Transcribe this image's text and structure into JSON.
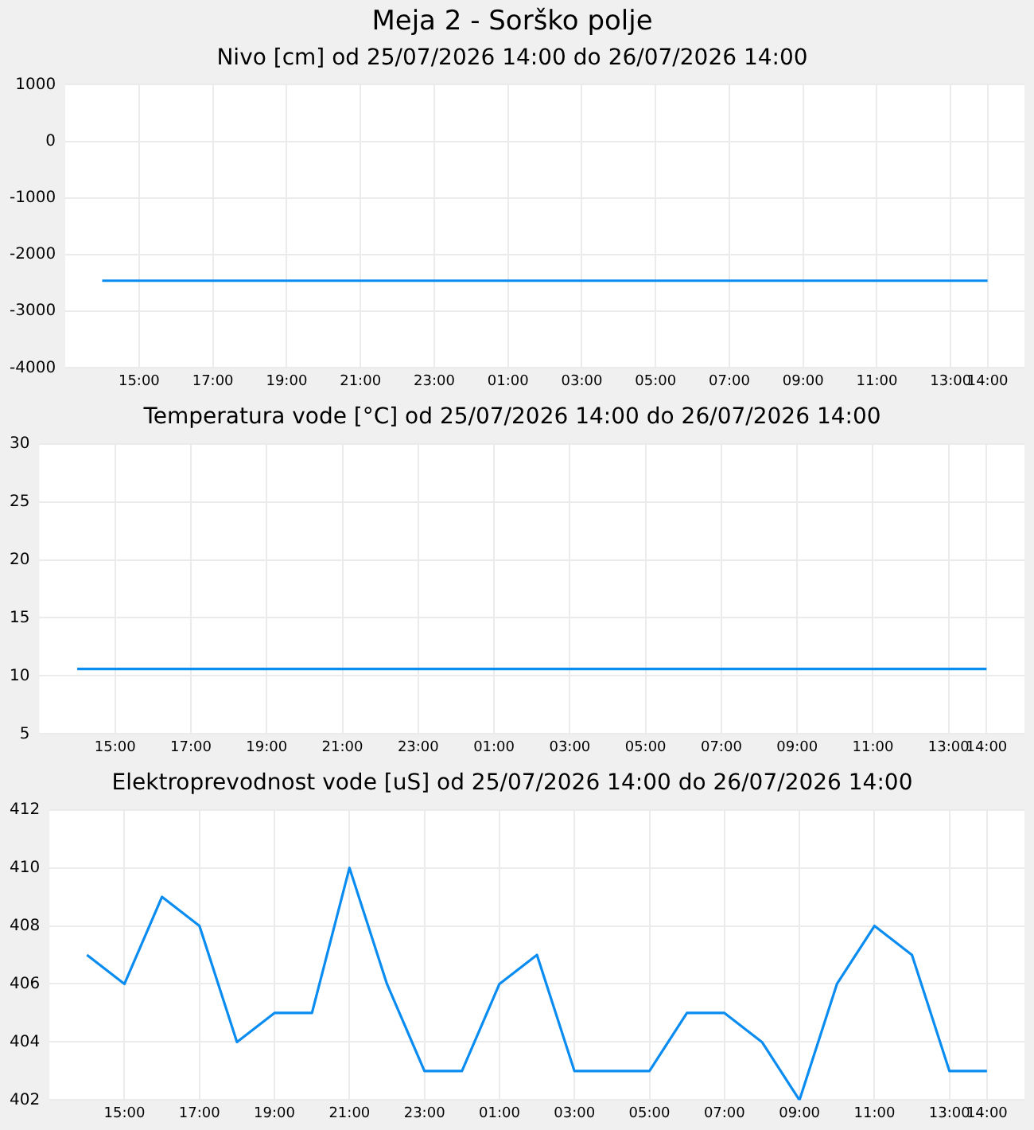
{
  "chart_data": [
    {
      "type": "line",
      "title": "Meja 2 - Sorško polje",
      "subtitle": "Nivo [cm] od 25/07/2026 14:00 do 26/07/2026 14:00",
      "x": [
        "2026-07-25T14:00",
        "2026-07-25T15:00",
        "2026-07-25T16:00",
        "2026-07-25T17:00",
        "2026-07-25T18:00",
        "2026-07-25T19:00",
        "2026-07-25T20:00",
        "2026-07-25T21:00",
        "2026-07-25T22:00",
        "2026-07-25T23:00",
        "2026-07-26T00:00",
        "2026-07-26T01:00",
        "2026-07-26T02:00",
        "2026-07-26T03:00",
        "2026-07-26T04:00",
        "2026-07-26T05:00",
        "2026-07-26T06:00",
        "2026-07-26T07:00",
        "2026-07-26T08:00",
        "2026-07-26T09:00",
        "2026-07-26T10:00",
        "2026-07-26T11:00",
        "2026-07-26T12:00",
        "2026-07-26T13:00",
        "2026-07-26T14:00"
      ],
      "series": [
        {
          "color": "#0a8cf0",
          "values": [
            -2460,
            -2460,
            -2460,
            -2460,
            -2460,
            -2460,
            -2460,
            -2460,
            -2460,
            -2460,
            -2460,
            -2460,
            -2460,
            -2460,
            -2460,
            -2460,
            -2460,
            -2460,
            -2460,
            -2460,
            -2460,
            -2460,
            -2460,
            -2460,
            -2460
          ]
        }
      ],
      "xlim": [
        "2026-07-25T13:00",
        "2026-07-26T15:00"
      ],
      "xticks": [
        {
          "value": "2026-07-25T15:00",
          "label": "15:00"
        },
        {
          "value": "2026-07-25T17:00",
          "label": "17:00"
        },
        {
          "value": "2026-07-25T19:00",
          "label": "19:00"
        },
        {
          "value": "2026-07-25T21:00",
          "label": "21:00"
        },
        {
          "value": "2026-07-25T23:00",
          "label": "23:00"
        },
        {
          "value": "2026-07-26T01:00",
          "label": "01:00"
        },
        {
          "value": "2026-07-26T03:00",
          "label": "03:00"
        },
        {
          "value": "2026-07-26T05:00",
          "label": "05:00"
        },
        {
          "value": "2026-07-26T07:00",
          "label": "07:00"
        },
        {
          "value": "2026-07-26T09:00",
          "label": "09:00"
        },
        {
          "value": "2026-07-26T11:00",
          "label": "11:00"
        },
        {
          "value": "2026-07-26T13:00",
          "label": "13:00"
        },
        {
          "value": "2026-07-26T14:00",
          "label": "14:00"
        }
      ],
      "ylim": [
        -4000,
        1000
      ],
      "yticks": [
        -4000,
        -3000,
        -2000,
        -1000,
        0,
        1000
      ],
      "grid": true,
      "legend": false,
      "marker": "none"
    },
    {
      "type": "line",
      "title": "Temperatura vode [°C] od 25/07/2026 14:00 do 26/07/2026 14:00",
      "x": [
        "2026-07-25T14:00",
        "2026-07-25T15:00",
        "2026-07-25T16:00",
        "2026-07-25T17:00",
        "2026-07-25T18:00",
        "2026-07-25T19:00",
        "2026-07-25T20:00",
        "2026-07-25T21:00",
        "2026-07-25T22:00",
        "2026-07-25T23:00",
        "2026-07-26T00:00",
        "2026-07-26T01:00",
        "2026-07-26T02:00",
        "2026-07-26T03:00",
        "2026-07-26T04:00",
        "2026-07-26T05:00",
        "2026-07-26T06:00",
        "2026-07-26T07:00",
        "2026-07-26T08:00",
        "2026-07-26T09:00",
        "2026-07-26T10:00",
        "2026-07-26T11:00",
        "2026-07-26T12:00",
        "2026-07-26T13:00",
        "2026-07-26T14:00"
      ],
      "series": [
        {
          "color": "#0a8cf0",
          "values": [
            10.6,
            10.6,
            10.6,
            10.6,
            10.6,
            10.6,
            10.6,
            10.6,
            10.6,
            10.6,
            10.6,
            10.6,
            10.6,
            10.6,
            10.6,
            10.6,
            10.6,
            10.6,
            10.6,
            10.6,
            10.6,
            10.6,
            10.6,
            10.6,
            10.6
          ]
        }
      ],
      "xlim": [
        "2026-07-25T13:00",
        "2026-07-26T15:00"
      ],
      "xticks": [
        {
          "value": "2026-07-25T15:00",
          "label": "15:00"
        },
        {
          "value": "2026-07-25T17:00",
          "label": "17:00"
        },
        {
          "value": "2026-07-25T19:00",
          "label": "19:00"
        },
        {
          "value": "2026-07-25T21:00",
          "label": "21:00"
        },
        {
          "value": "2026-07-25T23:00",
          "label": "23:00"
        },
        {
          "value": "2026-07-26T01:00",
          "label": "01:00"
        },
        {
          "value": "2026-07-26T03:00",
          "label": "03:00"
        },
        {
          "value": "2026-07-26T05:00",
          "label": "05:00"
        },
        {
          "value": "2026-07-26T07:00",
          "label": "07:00"
        },
        {
          "value": "2026-07-26T09:00",
          "label": "09:00"
        },
        {
          "value": "2026-07-26T11:00",
          "label": "11:00"
        },
        {
          "value": "2026-07-26T13:00",
          "label": "13:00"
        },
        {
          "value": "2026-07-26T14:00",
          "label": "14:00"
        }
      ],
      "ylim": [
        5,
        30
      ],
      "yticks": [
        5,
        10,
        15,
        20,
        25,
        30
      ],
      "grid": true,
      "legend": false,
      "marker": "none"
    },
    {
      "type": "line",
      "title": "Elektroprevodnost vode [uS] od 25/07/2026 14:00 do 26/07/2026 14:00",
      "x": [
        "2026-07-25T14:00",
        "2026-07-25T15:00",
        "2026-07-25T16:00",
        "2026-07-25T17:00",
        "2026-07-25T18:00",
        "2026-07-25T19:00",
        "2026-07-25T20:00",
        "2026-07-25T21:00",
        "2026-07-25T22:00",
        "2026-07-25T23:00",
        "2026-07-26T00:00",
        "2026-07-26T01:00",
        "2026-07-26T02:00",
        "2026-07-26T03:00",
        "2026-07-26T04:00",
        "2026-07-26T05:00",
        "2026-07-26T06:00",
        "2026-07-26T07:00",
        "2026-07-26T08:00",
        "2026-07-26T09:00",
        "2026-07-26T10:00",
        "2026-07-26T11:00",
        "2026-07-26T12:00",
        "2026-07-26T13:00",
        "2026-07-26T14:00"
      ],
      "series": [
        {
          "color": "#0a8cf0",
          "values": [
            407,
            406,
            409,
            408,
            404,
            405,
            405,
            410,
            406,
            403,
            403,
            406,
            407,
            403,
            403,
            403,
            405,
            405,
            404,
            402,
            406,
            408,
            407,
            403,
            403
          ]
        }
      ],
      "xlim": [
        "2026-07-25T13:00",
        "2026-07-26T15:00"
      ],
      "xticks": [
        {
          "value": "2026-07-25T15:00",
          "label": "15:00"
        },
        {
          "value": "2026-07-25T17:00",
          "label": "17:00"
        },
        {
          "value": "2026-07-25T19:00",
          "label": "19:00"
        },
        {
          "value": "2026-07-25T21:00",
          "label": "21:00"
        },
        {
          "value": "2026-07-25T23:00",
          "label": "23:00"
        },
        {
          "value": "2026-07-26T01:00",
          "label": "01:00"
        },
        {
          "value": "2026-07-26T03:00",
          "label": "03:00"
        },
        {
          "value": "2026-07-26T05:00",
          "label": "05:00"
        },
        {
          "value": "2026-07-26T07:00",
          "label": "07:00"
        },
        {
          "value": "2026-07-26T09:00",
          "label": "09:00"
        },
        {
          "value": "2026-07-26T11:00",
          "label": "11:00"
        },
        {
          "value": "2026-07-26T13:00",
          "label": "13:00"
        },
        {
          "value": "2026-07-26T14:00",
          "label": "14:00"
        }
      ],
      "ylim": [
        402,
        412
      ],
      "yticks": [
        402,
        404,
        406,
        408,
        410,
        412
      ],
      "grid": true,
      "legend": false,
      "marker": "none"
    }
  ]
}
